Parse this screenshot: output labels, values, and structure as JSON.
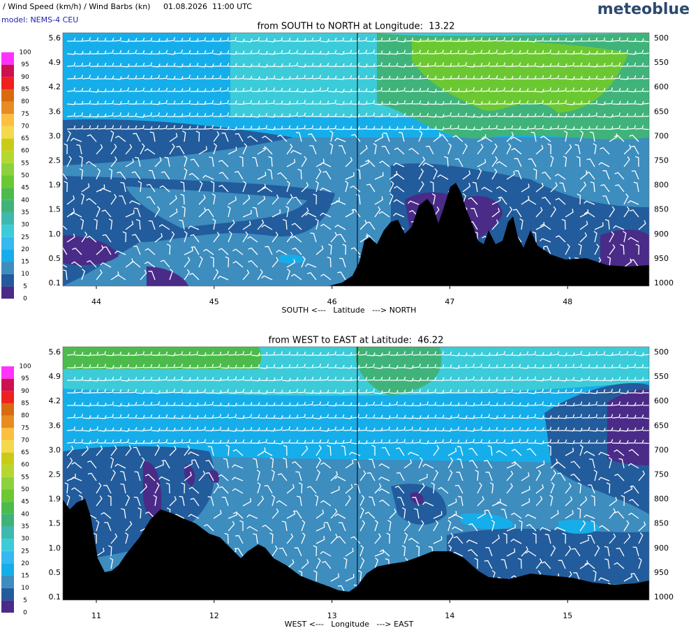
{
  "header": {
    "title": "/ Wind Speed (km/h) / Wind Barbs (kn)",
    "date": "01.08.2026  11:00 UTC",
    "brand": "meteoblue",
    "model": "model: NEMS-4 CEU"
  },
  "colorbar": {
    "labels": [
      "0",
      "5",
      "10",
      "15",
      "20",
      "25",
      "30",
      "35",
      "40",
      "45",
      "50",
      "55",
      "60",
      "65",
      "70",
      "75",
      "80",
      "85",
      "90",
      "95",
      "100"
    ],
    "colors": [
      "#4a2b88",
      "#225c9c",
      "#3d8dbf",
      "#16aeea",
      "#35b9f0",
      "#3ccbd9",
      "#3fb8b0",
      "#3fb37a",
      "#4cbb4c",
      "#6cc832",
      "#8cd23c",
      "#b5d730",
      "#c9cc17",
      "#f4d94f",
      "#fbc040",
      "#e88b20",
      "#d96a10",
      "#ee2020",
      "#cc1050",
      "#ff33ff"
    ]
  },
  "panels": [
    {
      "title": "from SOUTH to NORTH at Longitude:  13.22",
      "height_labels": [
        "5.6",
        "4.9",
        "4.2",
        "3.6",
        "3.0",
        "2.5",
        "1.9",
        "1.5",
        "1.0",
        "0.5",
        "0.1"
      ],
      "pressure_labels": [
        "500",
        "550",
        "600",
        "650",
        "700",
        "750",
        "800",
        "850",
        "900",
        "950",
        "1000"
      ],
      "x_labels": [
        "44",
        "45",
        "46",
        "47",
        "48"
      ],
      "x_title": "SOUTH <---   Latitude   ---> NORTH"
    },
    {
      "title": "from WEST to EAST at Latitude:  46.22",
      "height_labels": [
        "5.6",
        "4.9",
        "4.2",
        "3.6",
        "3.0",
        "2.5",
        "1.9",
        "1.5",
        "1.0",
        "0.5",
        "0.1"
      ],
      "pressure_labels": [
        "500",
        "550",
        "600",
        "650",
        "700",
        "750",
        "800",
        "850",
        "900",
        "950",
        "1000"
      ],
      "x_labels": [
        "11",
        "12",
        "13",
        "14",
        "15"
      ],
      "x_title": "WEST <---   Longitude   ---> EAST"
    }
  ]
}
